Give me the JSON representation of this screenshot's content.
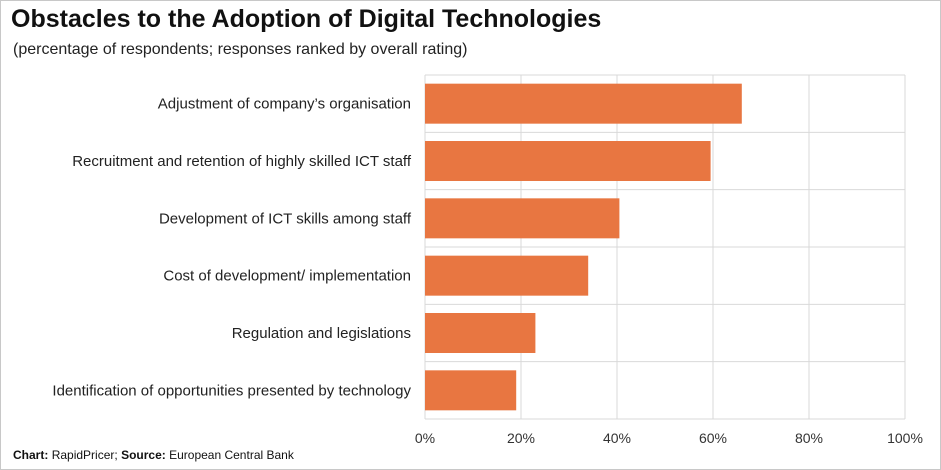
{
  "chart_data": {
    "type": "bar",
    "orientation": "horizontal",
    "title": "Obstacles to the Adoption of Digital Technologies",
    "subtitle": "(percentage of respondents; responses ranked by overall rating)",
    "categories": [
      "Adjustment of company’s organisation",
      "Recruitment and retention of highly skilled ICT staff",
      "Development of ICT skills among staff",
      "Cost of development/ implementation",
      "Regulation and legislations",
      "Identification of opportunities presented by technology"
    ],
    "values": [
      66,
      59.5,
      40.5,
      34,
      23,
      19
    ],
    "xlim": [
      0,
      100
    ],
    "xticks": [
      "0%",
      "20%",
      "40%",
      "60%",
      "80%",
      "100%"
    ],
    "grid": true,
    "bar_color": "#e87641"
  },
  "footer": {
    "chart_label": "Chart:",
    "chart_value": "RapidPricer;",
    "source_label": "Source:",
    "source_value": "European Central Bank"
  }
}
